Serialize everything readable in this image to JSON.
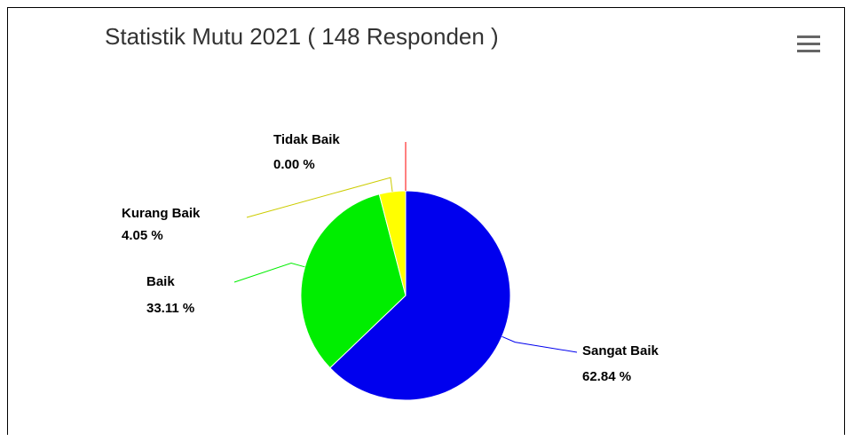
{
  "title": "Statistik Mutu 2021 ( 148 Responden )",
  "menu": {
    "icon": "hamburger-menu-icon"
  },
  "chart_data": {
    "type": "pie",
    "title": "Statistik Mutu 2021 ( 148 Responden )",
    "slices": [
      {
        "name": "Sangat Baik",
        "value": 62.84,
        "label": "62.84 %",
        "color": "#0000ee"
      },
      {
        "name": "Baik",
        "value": 33.11,
        "label": "33.11 %",
        "color": "#00ee00"
      },
      {
        "name": "Kurang Baik",
        "value": 4.05,
        "label": "4.05 %",
        "color": "#ffff00"
      },
      {
        "name": "Tidak Baik",
        "value": 0.0,
        "label": "0.00 %",
        "color": "#ff0000"
      }
    ]
  }
}
